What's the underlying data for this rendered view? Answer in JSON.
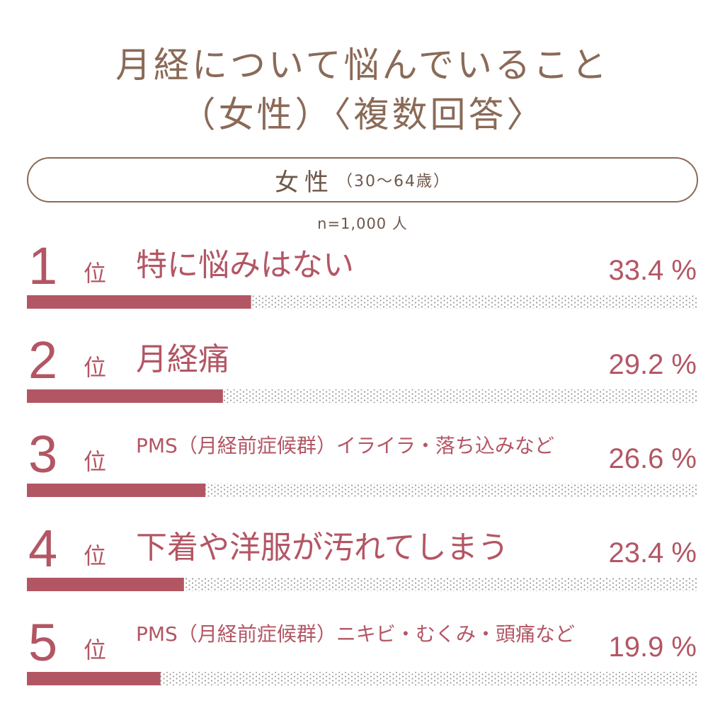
{
  "header": {
    "title_line1": "月経について悩んでいること",
    "title_line2": "（女性）〈複数回答〉"
  },
  "segment": {
    "gender": "女性",
    "age": "（30～64歳）"
  },
  "sample": "n=1,000 人",
  "colors": {
    "bar": "#b35664",
    "text_brown": "#8a6a57",
    "dots": "#9a9a9a"
  },
  "chart_data": {
    "type": "bar",
    "orientation": "horizontal",
    "categories": [
      "特に悩みはない",
      "月経痛",
      "PMS（月経前症候群）イライラ・落ち込みなど",
      "下着や洋服が汚れてしまう",
      "PMS（月経前症候群）ニキビ・むくみ・頭痛など"
    ],
    "ranks": [
      "1",
      "2",
      "3",
      "4",
      "5"
    ],
    "rank_suffix": "位",
    "values": [
      33.4,
      29.2,
      26.6,
      23.4,
      19.9
    ],
    "value_labels": [
      "33.4 %",
      "29.2 %",
      "26.6 %",
      "23.4 %",
      "19.9 %"
    ],
    "xlim": [
      0,
      100
    ],
    "grid": false
  }
}
